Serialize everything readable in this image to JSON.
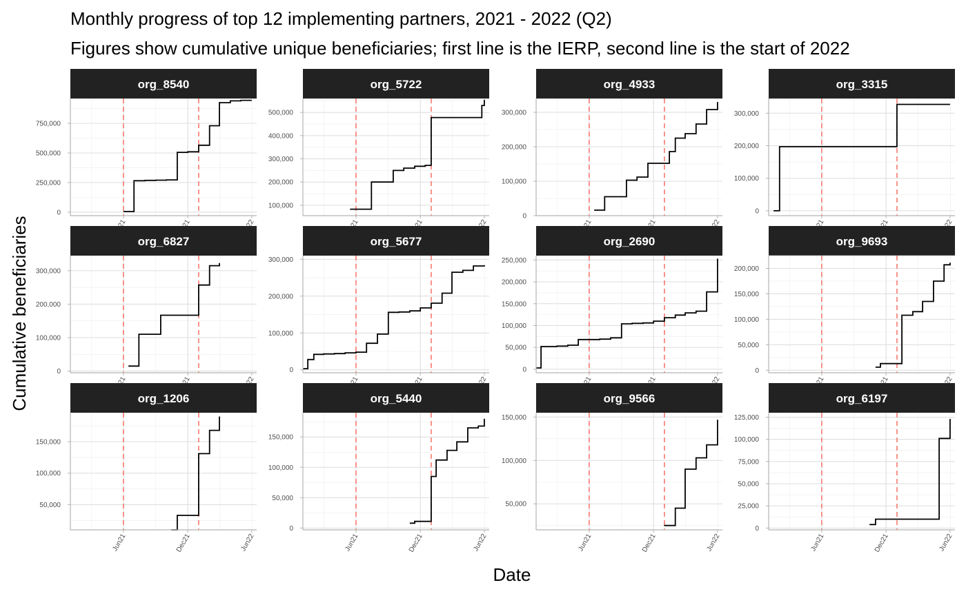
{
  "chart_data": {
    "type": "line",
    "title": "Monthly progress of top 12 implementing partners, 2021 - 2022 (Q2)",
    "subtitle": "Figures show cumulative unique beneficiaries; first line is the IERP, second line is the start of 2022",
    "xlabel": "Date",
    "ylabel": "Cumulative beneficiaries",
    "x_ticks": [
      "2021-06-01",
      "2021-12-01",
      "2022-06-01"
    ],
    "x_tick_labels": [
      "Jun21",
      "Dec21",
      "Jun22"
    ],
    "xlim": [
      "2021-01-01",
      "2022-06-15"
    ],
    "reference_lines": [
      {
        "x": "2021-06-01",
        "color": "#f8766d",
        "style": "dashed"
      },
      {
        "x": "2022-01-01",
        "color": "#f8766d",
        "style": "dashed"
      }
    ],
    "line_color": "#000000",
    "grid": true,
    "panels": [
      {
        "name": "org_8540",
        "ylim": [
          -30000,
          960000
        ],
        "yticks": [
          0,
          250000,
          500000,
          750000
        ],
        "ytick_labels": [
          "0",
          "250,000",
          "500,000",
          "750,000"
        ],
        "x": [
          "2021-06-01",
          "2021-07-01",
          "2021-08-01",
          "2021-09-01",
          "2021-10-01",
          "2021-11-01",
          "2021-12-01",
          "2022-01-01",
          "2022-02-01",
          "2022-03-01",
          "2022-04-01",
          "2022-05-01",
          "2022-06-01"
        ],
        "values": [
          5000,
          265000,
          268000,
          270000,
          272000,
          505000,
          510000,
          565000,
          730000,
          925000,
          940000,
          945000,
          945000
        ]
      },
      {
        "name": "org_5722",
        "ylim": [
          55000,
          560000
        ],
        "yticks": [
          100000,
          200000,
          300000,
          400000,
          500000
        ],
        "ytick_labels": [
          "100,000",
          "200,000",
          "300,000",
          "400,000",
          "500,000"
        ],
        "x": [
          "2021-05-15",
          "2021-06-15",
          "2021-07-15",
          "2021-08-15",
          "2021-09-15",
          "2021-10-15",
          "2021-11-15",
          "2021-12-15",
          "2022-01-01",
          "2022-02-01",
          "2022-03-01",
          "2022-04-01",
          "2022-05-01",
          "2022-05-25",
          "2022-06-01"
        ],
        "values": [
          83000,
          83000,
          200000,
          200000,
          250000,
          260000,
          268000,
          272000,
          478000,
          478000,
          478000,
          478000,
          478000,
          530000,
          555000
        ]
      },
      {
        "name": "org_4933",
        "ylim": [
          0,
          340000
        ],
        "yticks": [
          0,
          100000,
          200000,
          300000
        ],
        "ytick_labels": [
          "0",
          "100,000",
          "200,000",
          "300,000"
        ],
        "x": [
          "2021-06-15",
          "2021-07-15",
          "2021-08-15",
          "2021-09-15",
          "2021-10-15",
          "2021-11-15",
          "2021-12-15",
          "2022-01-01",
          "2022-01-15",
          "2022-02-01",
          "2022-03-01",
          "2022-04-01",
          "2022-05-01",
          "2022-06-01"
        ],
        "values": [
          16000,
          55000,
          55000,
          103000,
          112000,
          152000,
          152000,
          152000,
          186000,
          225000,
          238000,
          266000,
          308000,
          330000
        ]
      },
      {
        "name": "org_3315",
        "ylim": [
          -15000,
          345000
        ],
        "yticks": [
          0,
          100000,
          200000,
          300000
        ],
        "ytick_labels": [
          "0",
          "100,000",
          "200,000",
          "300,000"
        ],
        "x": [
          "2021-01-15",
          "2021-02-01",
          "2021-06-01",
          "2021-12-31",
          "2022-01-01",
          "2022-06-01"
        ],
        "values": [
          0,
          197000,
          197000,
          197000,
          327000,
          327000
        ]
      },
      {
        "name": "org_6827",
        "ylim": [
          -5000,
          345000
        ],
        "yticks": [
          0,
          100000,
          200000,
          300000
        ],
        "ytick_labels": [
          "0",
          "100,000",
          "200,000",
          "300,000"
        ],
        "x": [
          "2021-06-15",
          "2021-07-15",
          "2021-08-15",
          "2021-09-15",
          "2021-10-15",
          "2021-11-15",
          "2021-12-15",
          "2022-01-01",
          "2022-02-01",
          "2022-03-01"
        ],
        "values": [
          15000,
          110000,
          110000,
          167000,
          167000,
          167000,
          167000,
          257000,
          315000,
          323000
        ]
      },
      {
        "name": "org_5677",
        "ylim": [
          -8000,
          310000
        ],
        "yticks": [
          0,
          100000,
          200000,
          300000
        ],
        "ytick_labels": [
          "0",
          "100,000",
          "200,000",
          "300,000"
        ],
        "x": [
          "2021-01-01",
          "2021-01-15",
          "2021-02-01",
          "2021-03-01",
          "2021-04-01",
          "2021-05-01",
          "2021-06-01",
          "2021-07-01",
          "2021-08-01",
          "2021-09-01",
          "2021-10-01",
          "2021-11-01",
          "2021-12-01",
          "2022-01-01",
          "2022-02-01",
          "2022-03-01",
          "2022-04-01",
          "2022-05-01",
          "2022-06-01"
        ],
        "values": [
          3000,
          28000,
          42000,
          43000,
          44000,
          46000,
          48000,
          72000,
          97000,
          156000,
          157000,
          160000,
          168000,
          181000,
          208000,
          265000,
          270000,
          282000,
          284000
        ]
      },
      {
        "name": "org_2690",
        "ylim": [
          -8000,
          260000
        ],
        "yticks": [
          0,
          50000,
          100000,
          150000,
          200000,
          250000
        ],
        "ytick_labels": [
          "0",
          "50,000",
          "100,000",
          "150,000",
          "200,000",
          "250,000"
        ],
        "x": [
          "2021-01-01",
          "2021-01-15",
          "2021-03-01",
          "2021-04-01",
          "2021-05-01",
          "2021-06-01",
          "2021-07-01",
          "2021-08-01",
          "2021-09-01",
          "2021-10-01",
          "2021-11-01",
          "2021-12-01",
          "2022-01-01",
          "2022-02-01",
          "2022-03-01",
          "2022-04-01",
          "2022-05-01",
          "2022-06-01"
        ],
        "values": [
          3000,
          52000,
          53000,
          55000,
          68000,
          68000,
          69000,
          72000,
          104000,
          105000,
          106000,
          110000,
          118000,
          124000,
          129000,
          133000,
          177000,
          253000
        ]
      },
      {
        "name": "org_9693",
        "ylim": [
          -5000,
          225000
        ],
        "yticks": [
          0,
          50000,
          100000,
          150000,
          200000
        ],
        "ytick_labels": [
          "0",
          "50,000",
          "100,000",
          "150,000",
          "200,000"
        ],
        "x": [
          "2021-11-01",
          "2021-11-15",
          "2021-12-15",
          "2022-01-01",
          "2022-01-15",
          "2022-02-15",
          "2022-03-15",
          "2022-04-15",
          "2022-05-15",
          "2022-06-01"
        ],
        "values": [
          6000,
          13000,
          13000,
          13000,
          108000,
          115000,
          135000,
          175000,
          207000,
          211000
        ]
      },
      {
        "name": "org_1206",
        "ylim": [
          10000,
          196000
        ],
        "yticks": [
          50000,
          100000,
          150000
        ],
        "ytick_labels": [
          "50,000",
          "100,000",
          "150,000"
        ],
        "x": [
          "2021-10-15",
          "2021-11-01",
          "2021-12-01",
          "2022-01-01",
          "2022-02-01",
          "2022-03-01"
        ],
        "values": [
          10000,
          33000,
          33000,
          131000,
          168000,
          190000
        ]
      },
      {
        "name": "org_5440",
        "ylim": [
          -3000,
          190000
        ],
        "yticks": [
          0,
          50000,
          100000,
          150000
        ],
        "ytick_labels": [
          "0",
          "50,000",
          "100,000",
          "150,000"
        ],
        "x": [
          "2021-11-01",
          "2021-11-15",
          "2021-12-15",
          "2022-01-01",
          "2022-01-15",
          "2022-02-15",
          "2022-03-15",
          "2022-04-15",
          "2022-05-15",
          "2022-06-01"
        ],
        "values": [
          8000,
          11000,
          11000,
          85000,
          112000,
          128000,
          142000,
          165000,
          168000,
          180000
        ]
      },
      {
        "name": "org_9566",
        "ylim": [
          20000,
          155000
        ],
        "yticks": [
          50000,
          100000,
          150000
        ],
        "ytick_labels": [
          "50,000",
          "100,000",
          "150,000"
        ],
        "x": [
          "2021-12-31",
          "2022-01-15",
          "2022-02-01",
          "2022-03-01",
          "2022-04-01",
          "2022-05-01",
          "2022-06-01"
        ],
        "values": [
          25000,
          25000,
          45000,
          90000,
          103000,
          118000,
          147000
        ]
      },
      {
        "name": "org_6197",
        "ylim": [
          -2000,
          130000
        ],
        "yticks": [
          0,
          25000,
          50000,
          75000,
          100000,
          125000
        ],
        "ytick_labels": [
          "0",
          "25,000",
          "50,000",
          "75,000",
          "100,000",
          "125,000"
        ],
        "x": [
          "2021-10-15",
          "2021-11-01",
          "2021-12-01",
          "2022-01-01",
          "2022-02-01",
          "2022-03-01",
          "2022-04-01",
          "2022-05-01",
          "2022-06-01"
        ],
        "values": [
          4000,
          10000,
          10000,
          10000,
          10000,
          10000,
          10000,
          101000,
          123000
        ]
      }
    ]
  }
}
